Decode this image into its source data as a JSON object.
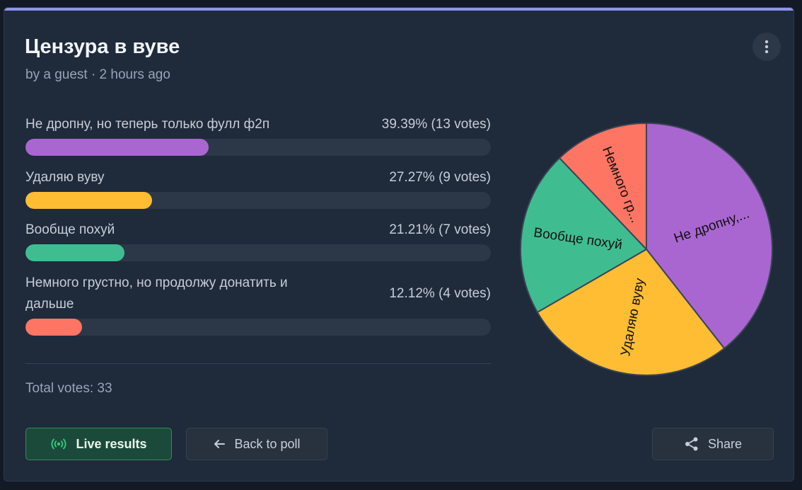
{
  "poll": {
    "title": "Цензура в вуве",
    "byline": "by a guest · 2 hours ago",
    "total_votes_label": "Total votes: 33"
  },
  "options": [
    {
      "label": "Не дропну, но теперь только фулл ф2п",
      "stat": "39.39% (13 votes)",
      "percent": 39.39,
      "votes": 13,
      "color": "#a966d1"
    },
    {
      "label": "Удаляю вуву",
      "stat": "27.27% (9 votes)",
      "percent": 27.27,
      "votes": 9,
      "color": "#ffbd33"
    },
    {
      "label": "Вообще похуй",
      "stat": "21.21% (7 votes)",
      "percent": 21.21,
      "votes": 7,
      "color": "#3fbd91"
    },
    {
      "label": "Немного грустно, но продолжу донатить и дальше",
      "stat": "12.12% (4 votes)",
      "percent": 12.12,
      "votes": 4,
      "color": "#ff7563"
    }
  ],
  "buttons": {
    "live": "Live results",
    "back": "Back to poll",
    "share": "Share"
  },
  "icons": {
    "menu": "more-vertical-icon",
    "live": "broadcast-icon",
    "back": "arrow-left-icon",
    "share": "share-icon"
  },
  "colors": {
    "accent_bar": "#8f95ea",
    "card_bg": "#1f2a3a",
    "live_green": "#2fd17a"
  },
  "chart_data": {
    "type": "pie",
    "categories": [
      "Не дропну, но теперь только фулл ф2п",
      "Удаляю вуву",
      "Вообще похуй",
      "Немного грустно, но продолжу донатить и дальше"
    ],
    "values": [
      13,
      9,
      7,
      4
    ],
    "slice_labels": [
      "Не дропну,...",
      "Удаляю вуву",
      "Вообще похуй",
      "Немного гр..."
    ],
    "colors": [
      "#a966d1",
      "#ffbd33",
      "#3fbd91",
      "#ff7563"
    ]
  }
}
